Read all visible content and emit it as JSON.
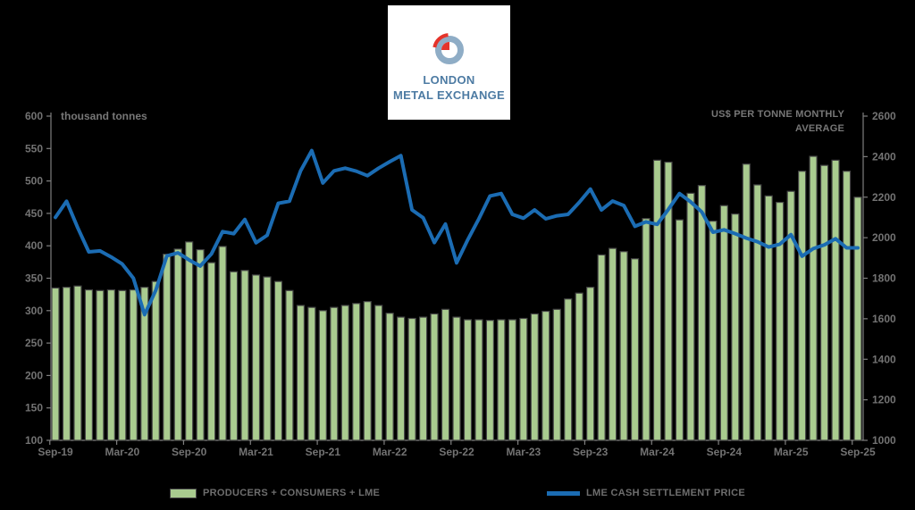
{
  "logo": {
    "line1": "LONDON",
    "line2": "METAL EXCHANGE"
  },
  "left_axis": {
    "label": "thousand tonnes",
    "min": 100,
    "max": 600,
    "ticks": [
      600,
      550,
      500,
      450,
      400,
      350,
      300,
      250,
      200,
      150,
      100
    ]
  },
  "right_axis": {
    "label_lines": [
      "US$ PER TONNE MONTHLY",
      "AVERAGE"
    ],
    "min": 1000,
    "max": 2600,
    "ticks": [
      2600,
      2400,
      2200,
      2000,
      1800,
      1600,
      1400,
      1200,
      1000
    ]
  },
  "legend": [
    {
      "label": "PRODUCERS + CONSUMERS + LME",
      "type": "bar"
    },
    {
      "label": "LME CASH SETTLEMENT PRICE",
      "type": "line"
    }
  ],
  "colors": {
    "background": "#000000",
    "bar_fill": "#a9cb8f",
    "bar_stroke": "#454545",
    "line": "#1b6cb3",
    "axis": "#7f7f7f",
    "tick_text": "#737373",
    "label_text": "#777777",
    "legend_text": "#6e6e6e",
    "logo_text": "#4d7ba3",
    "logo_ring": "#8fadc6",
    "logo_red": "#e5332a"
  },
  "chart_data": {
    "type": "bar+line combo",
    "title": "",
    "x_tick_labels": [
      "Sep-19",
      "Mar-20",
      "Sep-20",
      "Mar-21",
      "Sep-21",
      "Mar-22",
      "Sep-22",
      "Mar-23",
      "Sep-23",
      "Mar-24",
      "Sep-24",
      "Mar-25",
      "Sep-25"
    ],
    "months": [
      "Sep-19",
      "Oct-19",
      "Nov-19",
      "Dec-19",
      "Jan-20",
      "Feb-20",
      "Mar-20",
      "Apr-20",
      "May-20",
      "Jun-20",
      "Jul-20",
      "Aug-20",
      "Sep-20",
      "Oct-20",
      "Nov-20",
      "Dec-20",
      "Jan-21",
      "Feb-21",
      "Mar-21",
      "Apr-21",
      "May-21",
      "Jun-21",
      "Jul-21",
      "Aug-21",
      "Sep-21",
      "Oct-21",
      "Nov-21",
      "Dec-21",
      "Jan-22",
      "Feb-22",
      "Mar-22",
      "Apr-22",
      "May-22",
      "Jun-22",
      "Jul-22",
      "Aug-22",
      "Sep-22",
      "Oct-22",
      "Nov-22",
      "Dec-22",
      "Jan-23",
      "Feb-23",
      "Mar-23",
      "Apr-23",
      "May-23",
      "Jun-23",
      "Jul-23",
      "Aug-23",
      "Sep-23",
      "Oct-23",
      "Nov-23",
      "Dec-23",
      "Jan-24",
      "Feb-24",
      "Mar-24",
      "Apr-24",
      "May-24",
      "Jun-24",
      "Jul-24",
      "Aug-24",
      "Sep-24",
      "Oct-24",
      "Nov-24",
      "Dec-24",
      "Jan-25",
      "Feb-25",
      "Mar-25",
      "Apr-25",
      "May-25",
      "Jun-25",
      "Jul-25",
      "Aug-25",
      "Sep-25"
    ],
    "series": [
      {
        "name": "PRODUCERS + CONSUMERS + LME",
        "type": "bar",
        "axis": "left",
        "unit": "thousand tonnes",
        "values": [
          335,
          336,
          338,
          332,
          331,
          332,
          331,
          332,
          336,
          345,
          387,
          395,
          406,
          394,
          374,
          399,
          360,
          362,
          355,
          352,
          345,
          331,
          308,
          305,
          300,
          305,
          308,
          311,
          314,
          308,
          296,
          290,
          288,
          290,
          295,
          302,
          290,
          286,
          286,
          285,
          286,
          286,
          288,
          295,
          299,
          302,
          318,
          327,
          336,
          386,
          396,
          391,
          380,
          442,
          532,
          529,
          440,
          481,
          493,
          438,
          462,
          449,
          526,
          494,
          477,
          467,
          484,
          515,
          538,
          524,
          532,
          515,
          475
        ]
      },
      {
        "name": "LME CASH SETTLEMENT PRICE",
        "type": "line",
        "axis": "right",
        "unit": "US$ per tonne monthly average",
        "values": [
          2100,
          2180,
          2050,
          1930,
          1935,
          1905,
          1870,
          1800,
          1620,
          1740,
          1910,
          1925,
          1890,
          1860,
          1920,
          2030,
          2020,
          2090,
          1975,
          2012,
          2170,
          2180,
          2330,
          2430,
          2270,
          2330,
          2343,
          2328,
          2306,
          2343,
          2375,
          2405,
          2137,
          2098,
          1976,
          2067,
          1876,
          1990,
          2093,
          2206,
          2218,
          2115,
          2096,
          2137,
          2093,
          2108,
          2115,
          2174,
          2240,
          2137,
          2181,
          2159,
          2056,
          2078,
          2066,
          2140,
          2218,
          2177,
          2127,
          2027,
          2039,
          2020,
          1998,
          1980,
          1954,
          1968,
          2015,
          1909,
          1946,
          1965,
          1995,
          1950,
          1950
        ]
      }
    ],
    "left_ylim": [
      100,
      600
    ],
    "right_ylim": [
      1000,
      2600
    ],
    "grid": false,
    "legend_position": "bottom"
  }
}
